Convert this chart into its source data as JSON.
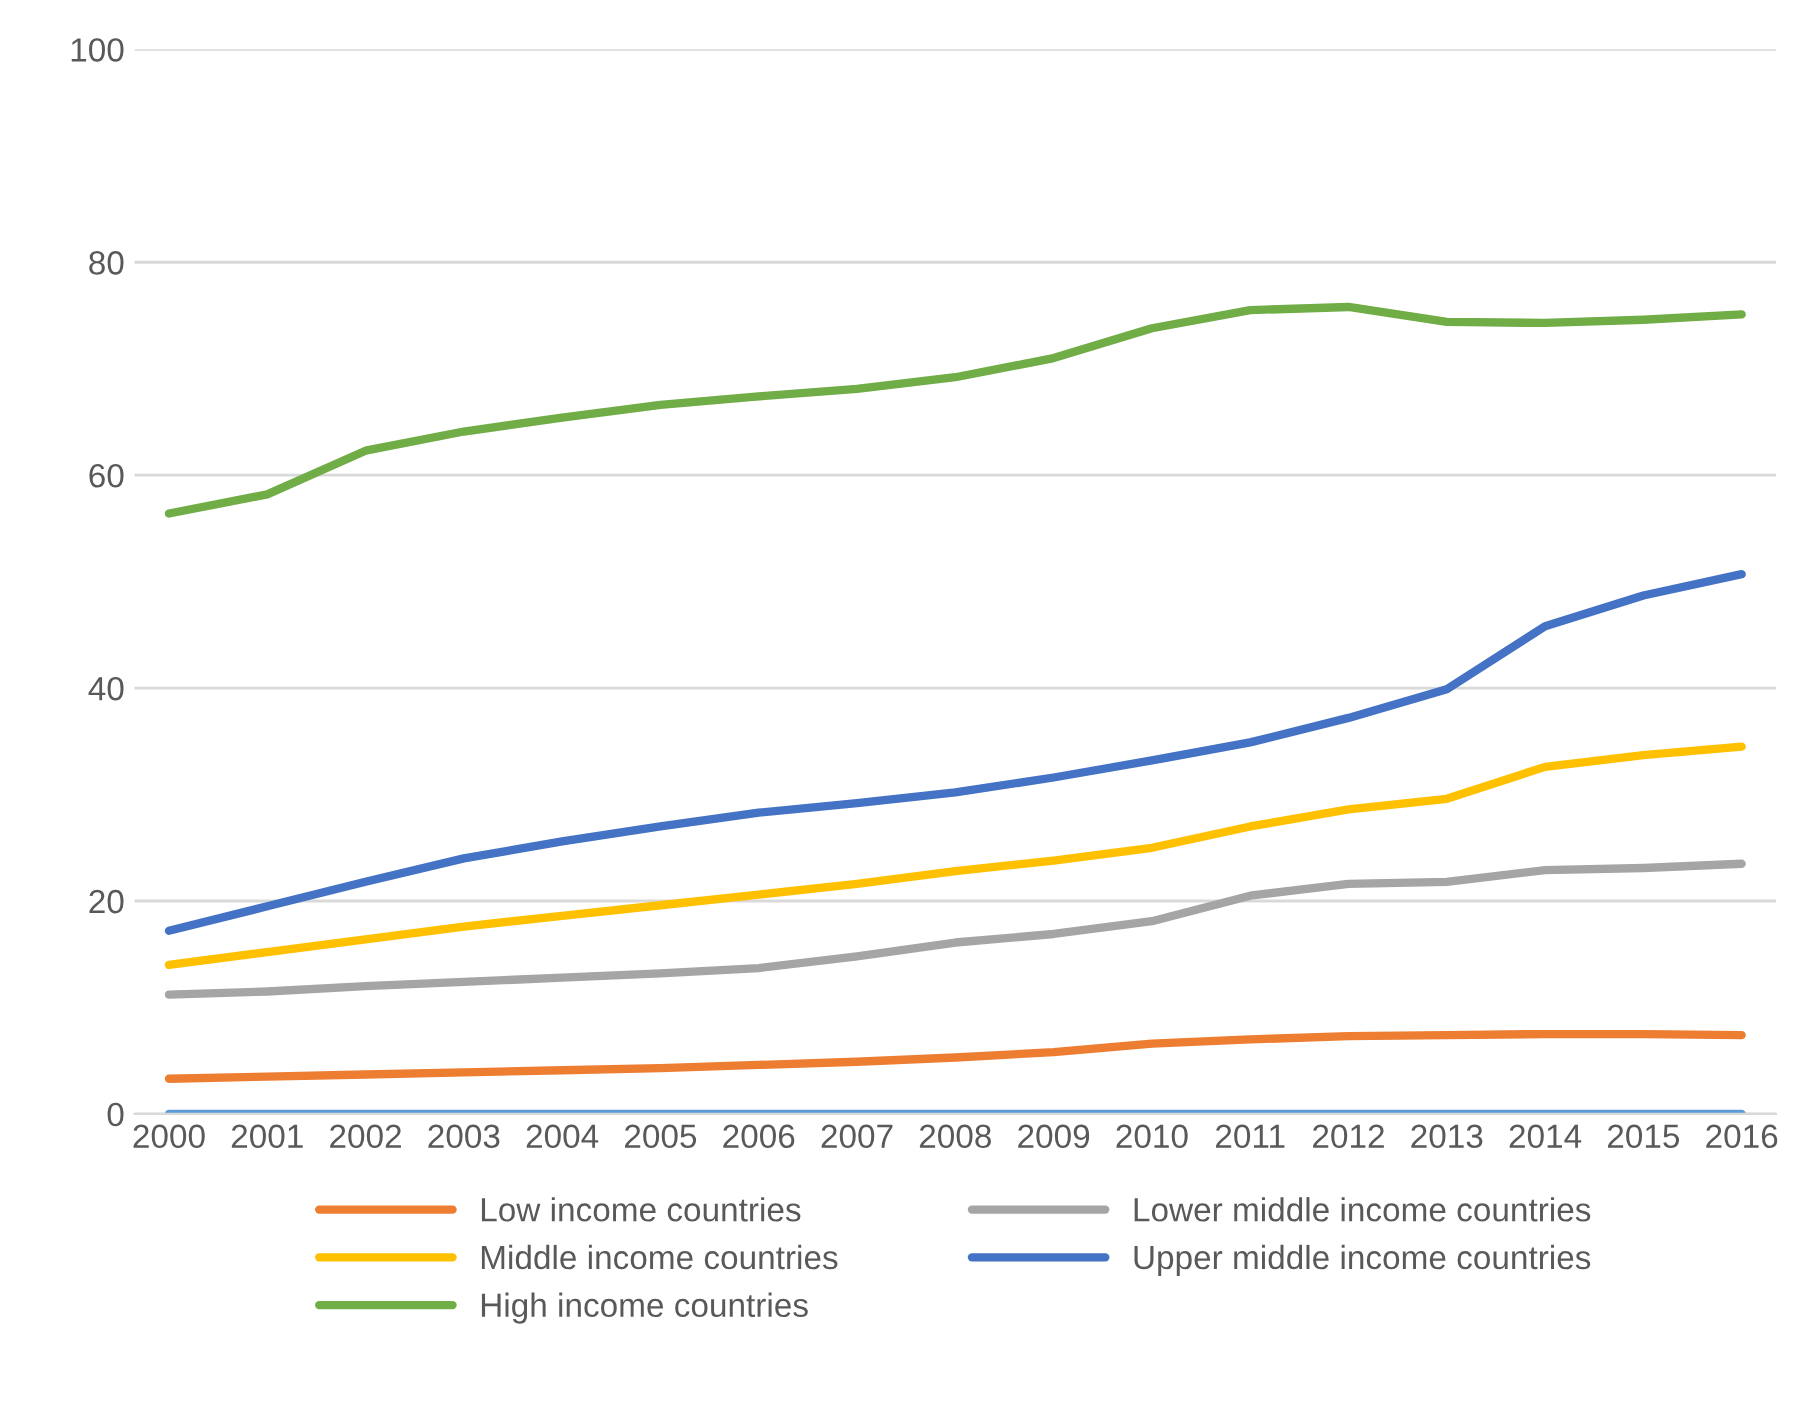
{
  "chart_data": {
    "type": "line",
    "categories": [
      "2000",
      "2001",
      "2002",
      "2003",
      "2004",
      "2005",
      "2006",
      "2007",
      "2008",
      "2009",
      "2010",
      "2011",
      "2012",
      "2013",
      "2014",
      "2015",
      "2016"
    ],
    "series": [
      {
        "name": "Low income countries",
        "color": "#ed7d31",
        "values": [
          3.3,
          3.5,
          3.7,
          3.9,
          4.1,
          4.3,
          4.6,
          4.9,
          5.3,
          5.8,
          6.6,
          7.0,
          7.3,
          7.4,
          7.5,
          7.5,
          7.4
        ]
      },
      {
        "name": "Lower middle income countries",
        "color": "#a5a5a5",
        "values": [
          11.2,
          11.5,
          12.0,
          12.4,
          12.8,
          13.2,
          13.7,
          14.8,
          16.1,
          16.9,
          18.1,
          20.5,
          21.6,
          21.8,
          22.9,
          23.1,
          23.5
        ]
      },
      {
        "name": "Middle income countries",
        "color": "#ffc000",
        "values": [
          14.0,
          15.2,
          16.4,
          17.6,
          18.6,
          19.6,
          20.6,
          21.6,
          22.8,
          23.8,
          25.0,
          27.0,
          28.6,
          29.6,
          32.6,
          33.7,
          34.5
        ]
      },
      {
        "name": "Upper middle income countries",
        "color": "#4472c4",
        "values": [
          17.2,
          19.5,
          21.8,
          24.0,
          25.6,
          27.0,
          28.3,
          29.2,
          30.2,
          31.6,
          33.2,
          34.9,
          37.2,
          39.9,
          45.8,
          48.7,
          50.7
        ]
      },
      {
        "name": "High income countries",
        "color": "#70ad47",
        "values": [
          56.4,
          58.2,
          62.3,
          64.1,
          65.4,
          66.6,
          67.4,
          68.1,
          69.2,
          71.0,
          73.8,
          75.5,
          75.8,
          74.4,
          74.3,
          74.6,
          75.1
        ]
      },
      {
        "color": "#5b9bd5",
        "values": [
          0,
          0,
          0,
          0,
          0,
          0,
          0,
          0,
          0,
          0,
          0,
          0,
          0,
          0,
          0,
          0,
          0
        ]
      }
    ],
    "ylim": [
      0,
      100
    ],
    "yticks": [
      0,
      20,
      40,
      60,
      80,
      100
    ],
    "grid": "y",
    "legend": "bottom",
    "marker": "none",
    "line_style": "solid"
  }
}
